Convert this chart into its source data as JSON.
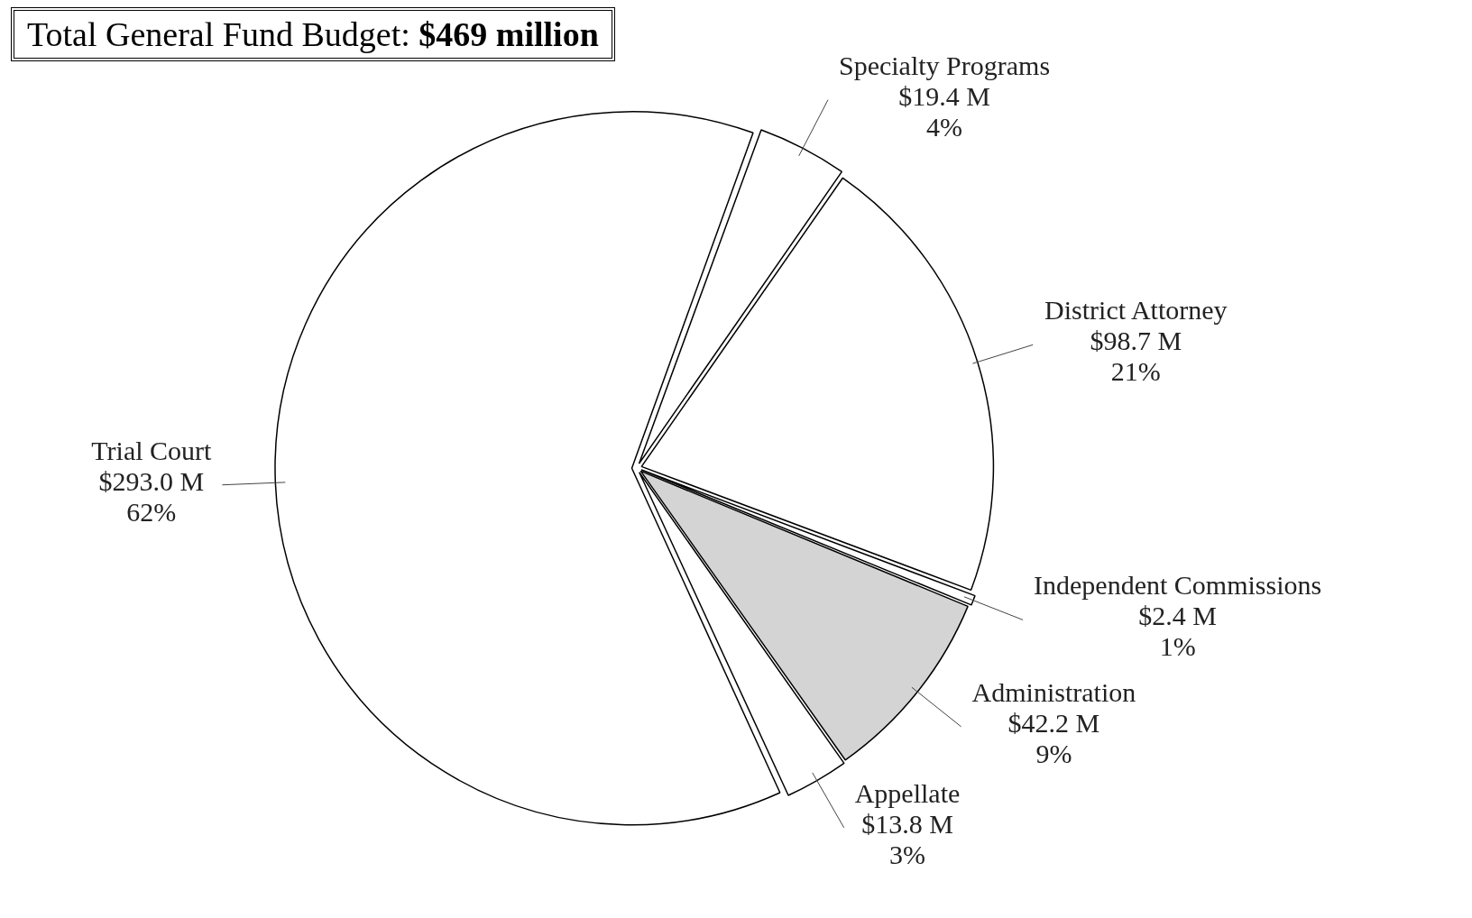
{
  "chart_data": {
    "type": "pie",
    "title": "Total General Fund Budget: $469 million",
    "categories": [
      "Specialty Programs",
      "District Attorney",
      "Independent Commissions",
      "Administration",
      "Appellate",
      "Trial Court"
    ],
    "values": [
      19.4,
      98.7,
      2.4,
      42.2,
      13.8,
      293.0
    ],
    "value_labels": [
      "$19.4 M\n4%",
      "$98.7 M\n21%",
      "$2.4 M\n1%",
      "$42.2 M\n9%",
      "$13.8 M\n3%",
      "$293.0 M\n62%"
    ],
    "colors": [
      "#ffffff",
      "#ffffff",
      "#ffffff",
      "#d4d4d4",
      "#ffffff",
      "#ffffff"
    ],
    "legend": false
  }
}
